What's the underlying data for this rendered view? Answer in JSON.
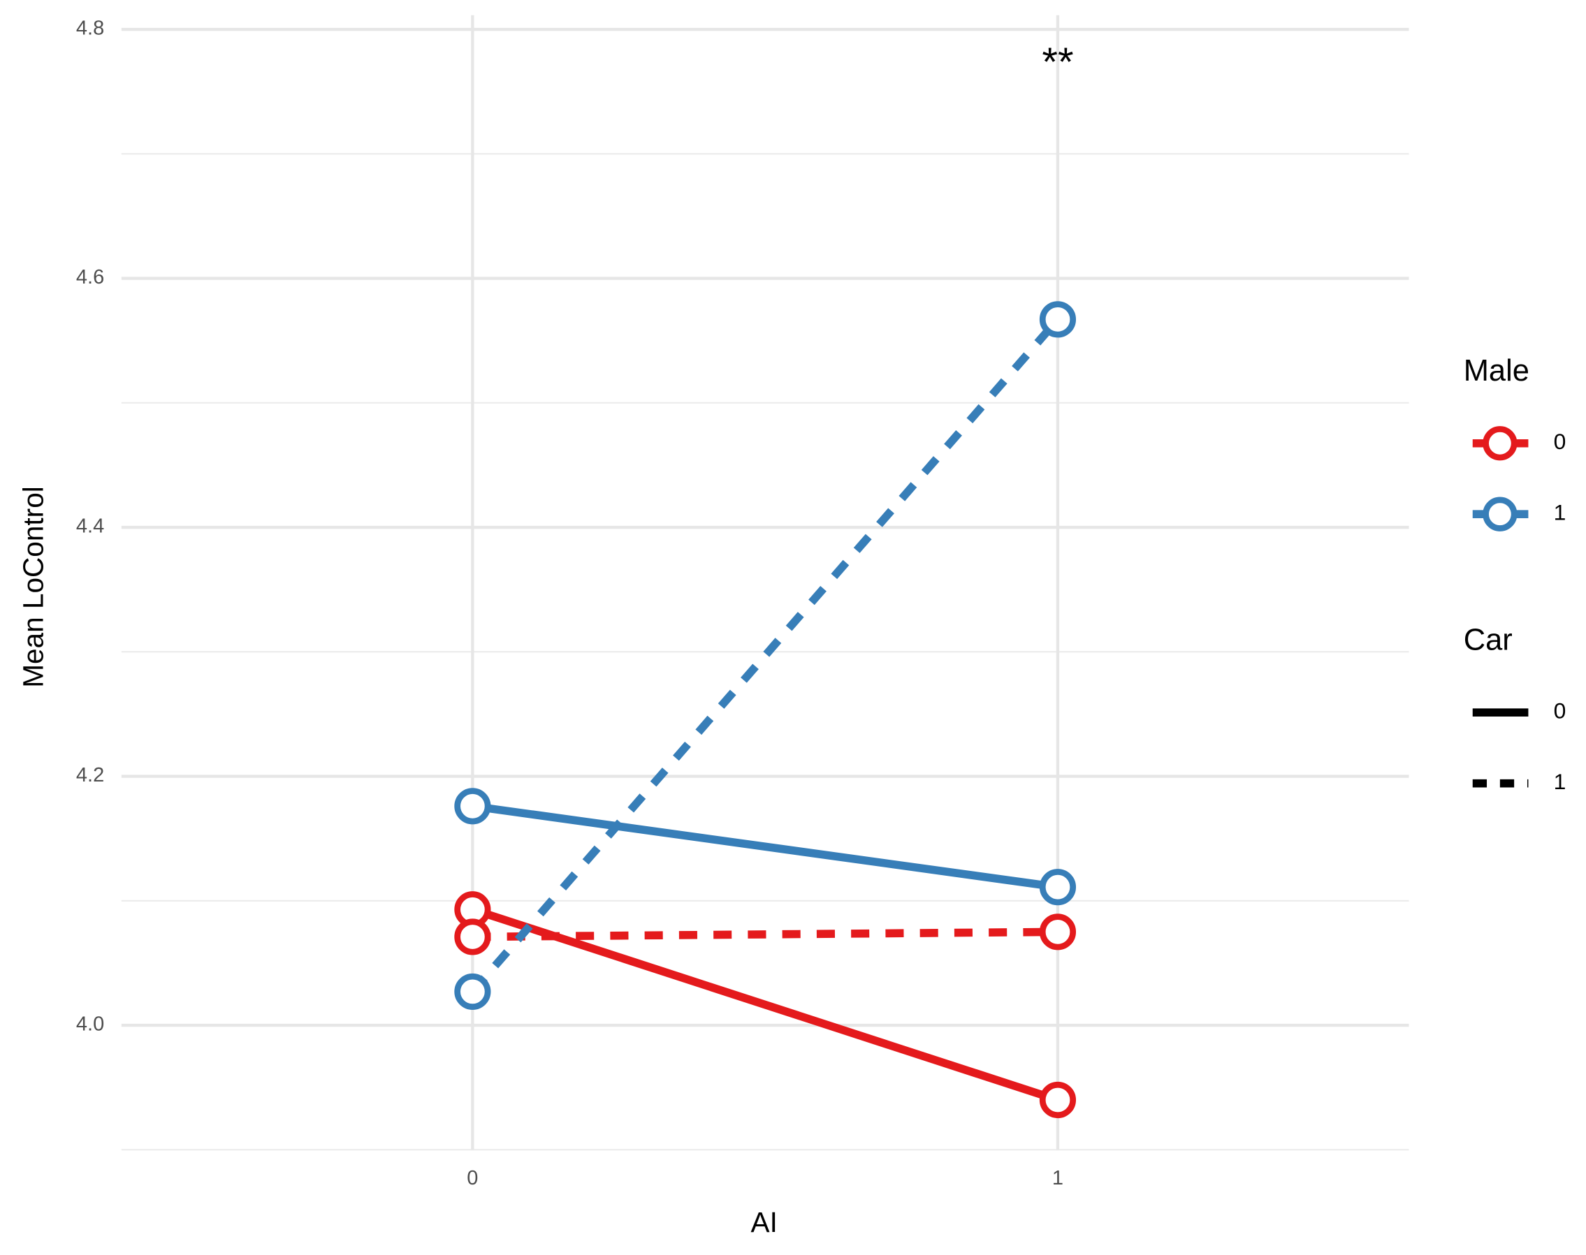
{
  "chart_data": {
    "type": "line",
    "x_label": "AI",
    "y_label": "Mean LoControl",
    "x": [
      0,
      1
    ],
    "xlim": [
      -0.6,
      1.6
    ],
    "xticks": [
      0,
      1
    ],
    "ylim": [
      3.9,
      4.8
    ],
    "yticks": [
      {
        "value": 4,
        "label": "4.0"
      },
      4.2,
      4.4,
      4.6,
      4.8
    ],
    "y_minor_grid": [
      3.9,
      4.1,
      4.3,
      4.5,
      4.7
    ],
    "grid": true,
    "series": [
      {
        "color": "#e41a1c",
        "linestyle": "solid",
        "values": [
          4.093,
          3.94
        ]
      },
      {
        "color": "#e41a1c",
        "linestyle": "dashed",
        "values": [
          4.071,
          4.075
        ]
      },
      {
        "color": "#377eb8",
        "linestyle": "solid",
        "values": [
          4.176,
          4.111
        ]
      },
      {
        "color": "#377eb8",
        "linestyle": "dashed",
        "values": [
          4.027,
          4.567
        ]
      }
    ],
    "annotation": "**",
    "legend_position": "right",
    "legends": [
      {
        "title": "Male",
        "entries": [
          {
            "label": "0",
            "color": "#e41a1c"
          },
          {
            "label": "1",
            "color": "#377eb8"
          }
        ]
      },
      {
        "title": "Car",
        "entries": [
          {
            "label": "0",
            "linestyle": "solid"
          },
          {
            "label": "1",
            "linestyle": "dashed"
          }
        ]
      }
    ]
  }
}
